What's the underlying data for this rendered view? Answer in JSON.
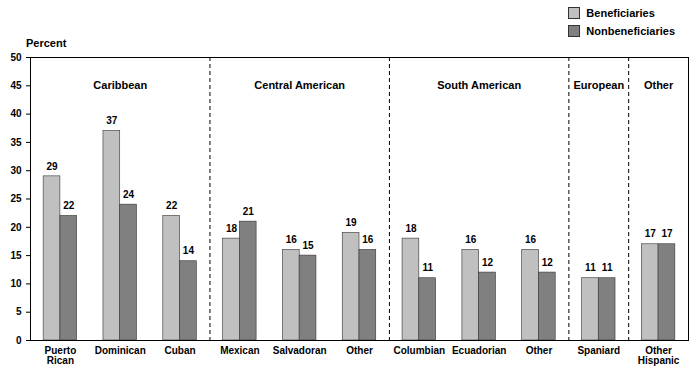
{
  "chart_data": {
    "type": "bar",
    "y_label": "Percent",
    "categories": [
      "Puerto Rican",
      "Dominican",
      "Cuban",
      "Mexican",
      "Salvadoran",
      "Other",
      "Columbian",
      "Ecuadorian",
      "Other",
      "Spaniard",
      "Other Hispanic"
    ],
    "groups": [
      "Caribbean",
      "Caribbean",
      "Caribbean",
      "Central American",
      "Central American",
      "Central American",
      "South American",
      "South American",
      "South American",
      "European",
      "Other"
    ],
    "series": [
      {
        "name": "Beneficiaries",
        "color": "#c0c0c0",
        "values": [
          29,
          37,
          22,
          18,
          16,
          19,
          18,
          16,
          16,
          11,
          17
        ]
      },
      {
        "name": "Nonbeneficiaries",
        "color": "#808080",
        "values": [
          22,
          24,
          14,
          21,
          15,
          16,
          11,
          12,
          12,
          11,
          17
        ]
      }
    ],
    "ylim": [
      0,
      50
    ],
    "yticks": [
      0,
      5,
      10,
      15,
      20,
      25,
      30,
      35,
      40,
      45,
      50
    ],
    "grid": false,
    "data_labels": true,
    "legend": "top-right"
  }
}
